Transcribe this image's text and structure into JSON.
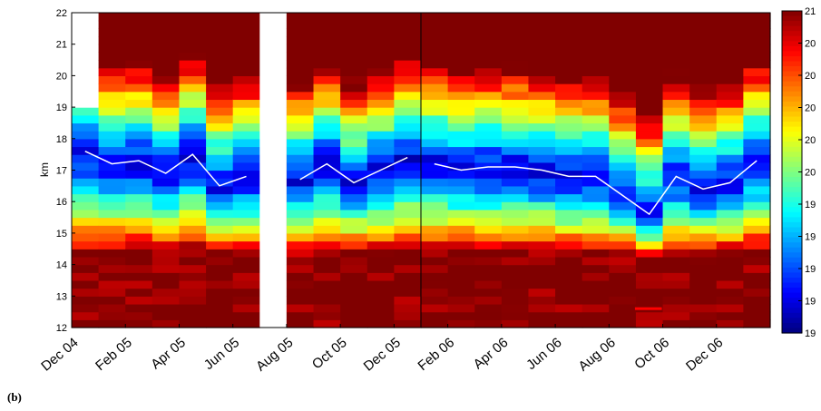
{
  "panel_label": "(b)",
  "chart_data": {
    "type": "heatmap",
    "title": "",
    "ylabel": "km",
    "xlabel": "",
    "ylim": [
      12,
      22
    ],
    "y_ticks": [
      "12",
      "13",
      "14",
      "15",
      "16",
      "17",
      "18",
      "19",
      "20",
      "21",
      "22"
    ],
    "x_tick_labels": [
      "Dec 04",
      "Feb 05",
      "Apr 05",
      "Jun 05",
      "Aug 05",
      "Oct 05",
      "Dec 05",
      "Feb 06",
      "Apr 06",
      "Jun 06",
      "Aug 06",
      "Oct 06",
      "Dec 06"
    ],
    "months": [
      "Dec 04",
      "Jan 05",
      "Feb 05",
      "Mar 05",
      "Apr 05",
      "May 05",
      "Jun 05",
      "Jul 05",
      "Aug 05",
      "Sep 05",
      "Oct 05",
      "Nov 05",
      "Dec 05",
      "Jan 06",
      "Feb 06",
      "Mar 06",
      "Apr 06",
      "May 06",
      "Jun 06",
      "Jul 06",
      "Aug 06",
      "Sep 06",
      "Oct 06",
      "Nov 06",
      "Dec 06",
      "Jan 07"
    ],
    "missing_months": [
      "Jul 05"
    ],
    "colorbar": {
      "colormap": "jet",
      "visible_tick_labels": [
        "21",
        "20",
        "20",
        "20",
        "20",
        "20",
        "19",
        "19",
        "19",
        "19",
        "19"
      ],
      "range_min": 190,
      "range_max": 210
    },
    "months_data": [
      {
        "month": "Dec 04",
        "min_height": 17.6,
        "data_top": 19.0
      },
      {
        "month": "Jan 05",
        "min_height": 17.2,
        "data_top": 22.0
      },
      {
        "month": "Feb 05",
        "min_height": 17.3,
        "data_top": 22.0
      },
      {
        "month": "Mar 05",
        "min_height": 16.9,
        "data_top": 22.0
      },
      {
        "month": "Apr 05",
        "min_height": 17.5,
        "data_top": 22.0
      },
      {
        "month": "May 05",
        "min_height": 16.5,
        "data_top": 22.0
      },
      {
        "month": "Jun 05",
        "min_height": 16.8,
        "data_top": 22.0
      },
      {
        "month": "Jul 05",
        "min_height": null,
        "data_top": null
      },
      {
        "month": "Aug 05",
        "min_height": 16.7,
        "data_top": 22.0
      },
      {
        "month": "Sep 05",
        "min_height": 17.2,
        "data_top": 22.0
      },
      {
        "month": "Oct 05",
        "min_height": 16.6,
        "data_top": 22.0
      },
      {
        "month": "Nov 05",
        "min_height": 17.0,
        "data_top": 22.0
      },
      {
        "month": "Dec 05",
        "min_height": 17.4,
        "data_top": 22.0
      },
      {
        "month": "Jan 06",
        "min_height": 17.2,
        "data_top": 22.0
      },
      {
        "month": "Feb 06",
        "min_height": 17.0,
        "data_top": 22.0
      },
      {
        "month": "Mar 06",
        "min_height": 17.1,
        "data_top": 22.0
      },
      {
        "month": "Apr 06",
        "min_height": 17.1,
        "data_top": 22.0
      },
      {
        "month": "May 06",
        "min_height": 17.0,
        "data_top": 22.0
      },
      {
        "month": "Jun 06",
        "min_height": 16.8,
        "data_top": 22.0
      },
      {
        "month": "Jul 06",
        "min_height": 16.8,
        "data_top": 22.0
      },
      {
        "month": "Aug 06",
        "min_height": 16.2,
        "data_top": 22.0
      },
      {
        "month": "Sep 06",
        "min_height": 15.6,
        "data_top": 22.0
      },
      {
        "month": "Oct 06",
        "min_height": 16.8,
        "data_top": 22.0
      },
      {
        "month": "Nov 06",
        "min_height": 16.4,
        "data_top": 22.0
      },
      {
        "month": "Dec 06",
        "min_height": 16.6,
        "data_top": 22.0
      },
      {
        "month": "Jan 07",
        "min_height": 17.3,
        "data_top": 22.0
      }
    ],
    "series": [
      {
        "type": "line",
        "color": "#ffffff",
        "segments": [
          {
            "x": [
              "Dec 04",
              "Jan 05",
              "Feb 05",
              "Mar 05",
              "Apr 05",
              "May 05",
              "Jun 05"
            ],
            "y": [
              17.6,
              17.2,
              17.3,
              16.9,
              17.5,
              16.5,
              16.8
            ]
          },
          {
            "x": [
              "Aug 05",
              "Sep 05",
              "Oct 05",
              "Nov 05",
              "Dec 05"
            ],
            "y": [
              16.7,
              17.2,
              16.6,
              17.0,
              17.4
            ]
          },
          {
            "x": [
              "Jan 06",
              "Feb 06",
              "Mar 06",
              "Apr 06",
              "May 06",
              "Jun 06",
              "Jul 06",
              "Aug 06",
              "Sep 06",
              "Oct 06",
              "Nov 06",
              "Dec 06",
              "Jan 07"
            ],
            "y": [
              17.2,
              17.0,
              17.1,
              17.1,
              17.0,
              16.8,
              16.8,
              16.2,
              15.6,
              16.8,
              16.4,
              16.6,
              17.3
            ]
          }
        ]
      }
    ],
    "annotations": [
      {
        "month": "Sep 06",
        "y": 12.6,
        "description": "isolated red mark"
      }
    ],
    "colors": {
      "background_fill": "#800000",
      "line": "#ffffff",
      "divider": "#000000"
    }
  }
}
